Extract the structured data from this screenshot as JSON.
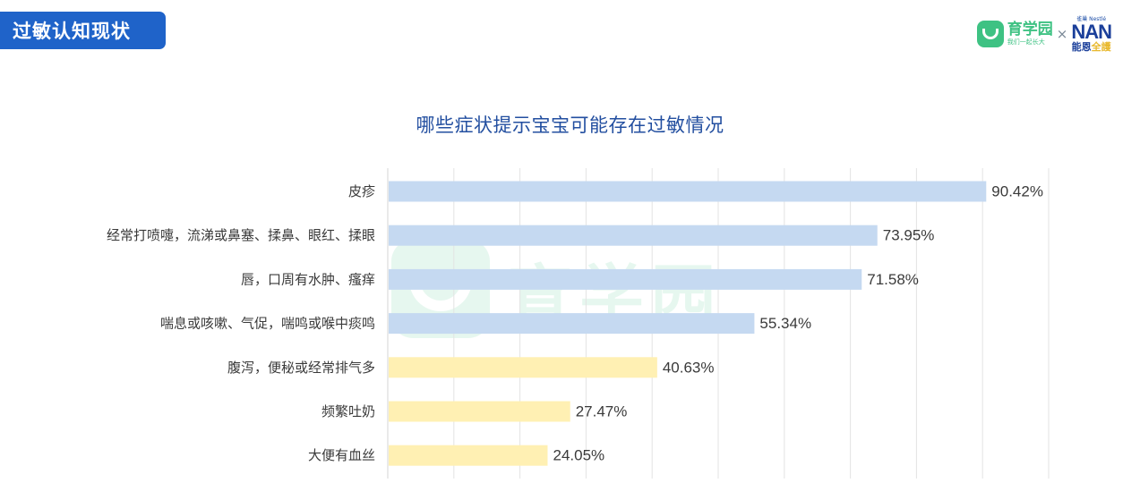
{
  "header": {
    "section_title": "过敏认知现状"
  },
  "brand": {
    "yuxueyuan_name": "育学园",
    "yuxueyuan_slogan": "我们一起长大",
    "separator": "×",
    "nan_top": "雀巢 Nestlé",
    "nan_name": "NAN",
    "nan_sub_a": "能恩",
    "nan_sub_b": "全護"
  },
  "watermark": {
    "text": "育学园"
  },
  "chart_data": {
    "type": "bar",
    "orientation": "horizontal",
    "title": "哪些症状提示宝宝可能存在过敏情况",
    "categories": [
      "皮疹",
      "经常打喷嚏，流涕或鼻塞、揉鼻、眼红、揉眼",
      "唇，口周有水肿、瘙痒",
      "喘息或咳嗽、气促，喘鸣或喉中痰鸣",
      "腹泻，便秘或经常排气多",
      "频繁吐奶",
      "大便有血丝"
    ],
    "values": [
      90.42,
      73.95,
      71.58,
      55.34,
      40.63,
      27.47,
      24.05
    ],
    "value_labels": [
      "90.42%",
      "73.95%",
      "71.58%",
      "55.34%",
      "40.63%",
      "27.47%",
      "24.05%"
    ],
    "bar_colors": [
      "#c5d9f1",
      "#c5d9f1",
      "#c5d9f1",
      "#c5d9f1",
      "#fff0b3",
      "#fff0b3",
      "#fff0b3"
    ],
    "xlim": [
      0,
      100
    ],
    "grid": true,
    "legend": "none"
  }
}
